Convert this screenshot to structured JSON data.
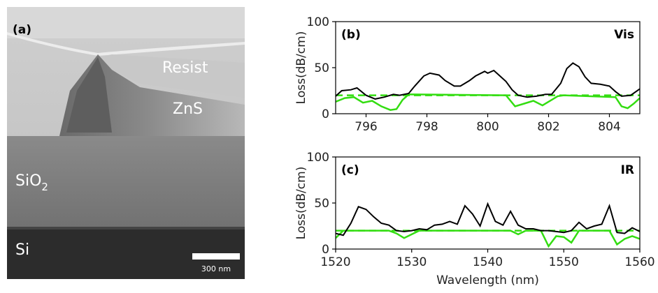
{
  "panel_a": {
    "letter": "(a)",
    "labels": {
      "resist": "Resist",
      "zns": "ZnS",
      "sio2_base": "SiO",
      "sio2_sub": "2",
      "si": "Si"
    },
    "scale_bar": "300 nm"
  },
  "chart_data": [
    {
      "type": "line",
      "panel": "(b)",
      "tag": "Vis",
      "ylabel": "Loss(dB/cm)",
      "xlabel": "",
      "xlim": [
        795,
        805
      ],
      "ylim": [
        0,
        100
      ],
      "xticks": [
        796,
        798,
        800,
        802,
        804
      ],
      "yticks": [
        0,
        50,
        100
      ],
      "colors": {
        "measured": "#000000",
        "reference": "#33dd11"
      },
      "measured": [
        [
          795.0,
          19
        ],
        [
          795.2,
          25
        ],
        [
          795.5,
          26
        ],
        [
          795.7,
          28
        ],
        [
          796.0,
          20
        ],
        [
          796.3,
          16
        ],
        [
          796.6,
          18
        ],
        [
          796.9,
          21
        ],
        [
          797.1,
          20
        ],
        [
          797.4,
          22
        ],
        [
          797.6,
          30
        ],
        [
          797.9,
          41
        ],
        [
          798.1,
          44
        ],
        [
          798.4,
          42
        ],
        [
          798.6,
          36
        ],
        [
          798.9,
          30
        ],
        [
          799.1,
          30
        ],
        [
          799.4,
          36
        ],
        [
          799.6,
          41
        ],
        [
          799.9,
          46
        ],
        [
          800.0,
          44
        ],
        [
          800.2,
          47
        ],
        [
          800.4,
          41
        ],
        [
          800.6,
          35
        ],
        [
          800.8,
          26
        ],
        [
          801.0,
          20
        ],
        [
          801.3,
          18
        ],
        [
          801.6,
          19
        ],
        [
          801.9,
          21
        ],
        [
          802.1,
          21
        ],
        [
          802.4,
          33
        ],
        [
          802.6,
          49
        ],
        [
          802.8,
          55
        ],
        [
          803.0,
          51
        ],
        [
          803.2,
          40
        ],
        [
          803.4,
          33
        ],
        [
          803.7,
          32
        ],
        [
          804.0,
          30
        ],
        [
          804.2,
          24
        ],
        [
          804.4,
          19
        ],
        [
          804.7,
          20
        ],
        [
          805.0,
          27
        ]
      ],
      "reference_curve": [
        [
          795.0,
          13
        ],
        [
          795.3,
          17
        ],
        [
          795.6,
          18
        ],
        [
          795.9,
          12
        ],
        [
          796.2,
          14
        ],
        [
          796.5,
          8
        ],
        [
          796.8,
          4
        ],
        [
          797.0,
          5
        ],
        [
          797.2,
          15
        ],
        [
          797.4,
          21
        ],
        [
          800.6,
          20
        ],
        [
          800.9,
          8
        ],
        [
          801.2,
          11
        ],
        [
          801.5,
          14
        ],
        [
          801.8,
          9
        ],
        [
          802.1,
          15
        ],
        [
          802.3,
          19
        ],
        [
          802.5,
          20
        ],
        [
          804.2,
          18
        ],
        [
          804.4,
          8
        ],
        [
          804.6,
          6
        ],
        [
          804.8,
          11
        ],
        [
          805.0,
          17
        ]
      ],
      "reference_level": 20
    },
    {
      "type": "line",
      "panel": "(c)",
      "tag": "IR",
      "ylabel": "Loss(dB/cm)",
      "xlabel": "Wavelength (nm)",
      "xlim": [
        1520,
        1560
      ],
      "ylim": [
        0,
        100
      ],
      "xticks": [
        1520,
        1530,
        1540,
        1550,
        1560
      ],
      "yticks": [
        0,
        50,
        100
      ],
      "colors": {
        "measured": "#000000",
        "reference": "#33dd11"
      },
      "measured": [
        [
          1520.0,
          17
        ],
        [
          1521.0,
          15
        ],
        [
          1522.0,
          28
        ],
        [
          1523.0,
          46
        ],
        [
          1524.0,
          43
        ],
        [
          1525.0,
          35
        ],
        [
          1526.0,
          28
        ],
        [
          1527.0,
          26
        ],
        [
          1528.0,
          20
        ],
        [
          1529.0,
          19
        ],
        [
          1530.0,
          20
        ],
        [
          1531.0,
          22
        ],
        [
          1532.0,
          21
        ],
        [
          1533.0,
          26
        ],
        [
          1534.0,
          27
        ],
        [
          1535.0,
          30
        ],
        [
          1536.0,
          27
        ],
        [
          1537.0,
          47
        ],
        [
          1538.0,
          38
        ],
        [
          1539.0,
          25
        ],
        [
          1540.0,
          49
        ],
        [
          1541.0,
          30
        ],
        [
          1542.0,
          26
        ],
        [
          1543.0,
          41
        ],
        [
          1544.0,
          26
        ],
        [
          1545.0,
          22
        ],
        [
          1546.0,
          22
        ],
        [
          1547.0,
          20
        ],
        [
          1548.0,
          20
        ],
        [
          1549.0,
          19
        ],
        [
          1550.0,
          18
        ],
        [
          1551.0,
          20
        ],
        [
          1552.0,
          29
        ],
        [
          1553.0,
          22
        ],
        [
          1554.0,
          25
        ],
        [
          1555.0,
          27
        ],
        [
          1556.0,
          47
        ],
        [
          1557.0,
          18
        ],
        [
          1558.0,
          17
        ],
        [
          1559.0,
          23
        ],
        [
          1560.0,
          19
        ]
      ],
      "reference_curve": [
        [
          1520.0,
          12
        ],
        [
          1521.0,
          20
        ],
        [
          1521.5,
          20
        ],
        [
          1527.0,
          20
        ],
        [
          1528.0,
          17
        ],
        [
          1529.0,
          12
        ],
        [
          1530.0,
          16
        ],
        [
          1531.0,
          20
        ],
        [
          1543.0,
          20
        ],
        [
          1544.0,
          16
        ],
        [
          1545.0,
          20
        ],
        [
          1547.0,
          20
        ],
        [
          1548.0,
          3
        ],
        [
          1549.0,
          14
        ],
        [
          1550.0,
          13
        ],
        [
          1551.0,
          7
        ],
        [
          1552.0,
          20
        ],
        [
          1556.0,
          20
        ],
        [
          1557.0,
          5
        ],
        [
          1558.0,
          11
        ],
        [
          1559.0,
          14
        ],
        [
          1560.0,
          11
        ]
      ],
      "reference_level": 20
    }
  ]
}
